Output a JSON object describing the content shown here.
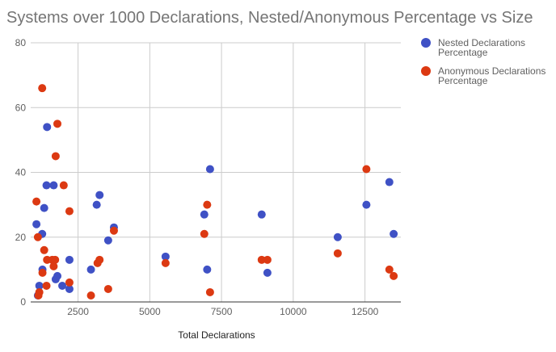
{
  "chart_data": {
    "type": "scatter",
    "title": "Systems over 1000 Declarations, Nested/Anonymous Percentage vs Size",
    "xlabel": "Total Declarations",
    "ylabel": "",
    "xlim": [
      850,
      13750
    ],
    "ylim": [
      0,
      80
    ],
    "x_ticks": [
      2500,
      5000,
      7500,
      10000,
      12500
    ],
    "y_ticks": [
      0,
      20,
      40,
      60,
      80
    ],
    "grid": true,
    "legend_position": "right",
    "series": [
      {
        "name": "Nested Declarations Percentage",
        "color": "#3f51c5",
        "points": [
          [
            1050,
            24
          ],
          [
            1100,
            2
          ],
          [
            1150,
            5
          ],
          [
            1250,
            21
          ],
          [
            1260,
            10
          ],
          [
            1320,
            29
          ],
          [
            1400,
            36
          ],
          [
            1420,
            54
          ],
          [
            1650,
            36
          ],
          [
            1720,
            7
          ],
          [
            1780,
            8
          ],
          [
            1950,
            5
          ],
          [
            2200,
            13
          ],
          [
            2200,
            4
          ],
          [
            2950,
            10
          ],
          [
            3150,
            30
          ],
          [
            3250,
            33
          ],
          [
            3550,
            19
          ],
          [
            3750,
            23
          ],
          [
            5550,
            14
          ],
          [
            6900,
            27
          ],
          [
            7000,
            10
          ],
          [
            7100,
            41
          ],
          [
            8900,
            27
          ],
          [
            9100,
            9
          ],
          [
            11550,
            20
          ],
          [
            12550,
            30
          ],
          [
            13350,
            37
          ],
          [
            13500,
            21
          ]
        ]
      },
      {
        "name": "Anonymous Declarations Percentage",
        "color": "#dc3912",
        "points": [
          [
            1050,
            31
          ],
          [
            1100,
            20
          ],
          [
            1120,
            2
          ],
          [
            1150,
            3
          ],
          [
            1250,
            66
          ],
          [
            1260,
            9
          ],
          [
            1320,
            16
          ],
          [
            1420,
            13
          ],
          [
            1400,
            5
          ],
          [
            1600,
            13
          ],
          [
            1650,
            11
          ],
          [
            1700,
            13
          ],
          [
            1720,
            45
          ],
          [
            1780,
            55
          ],
          [
            2000,
            36
          ],
          [
            2200,
            28
          ],
          [
            2200,
            6
          ],
          [
            2950,
            2
          ],
          [
            3180,
            12
          ],
          [
            3250,
            13
          ],
          [
            3550,
            4
          ],
          [
            3750,
            22
          ],
          [
            5550,
            12
          ],
          [
            6900,
            21
          ],
          [
            7000,
            30
          ],
          [
            7100,
            3
          ],
          [
            8900,
            13
          ],
          [
            9100,
            13
          ],
          [
            11550,
            15
          ],
          [
            12550,
            41
          ],
          [
            13350,
            10
          ],
          [
            13500,
            8
          ]
        ]
      }
    ]
  }
}
